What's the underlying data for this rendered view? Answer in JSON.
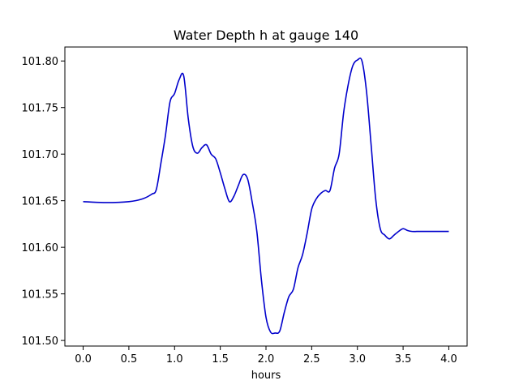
{
  "chart_data": {
    "type": "line",
    "title": "Water Depth h at gauge 140",
    "xlabel": "hours",
    "ylabel": "",
    "xlim": [
      -0.2,
      4.2
    ],
    "ylim": [
      101.494,
      101.815
    ],
    "grid": false,
    "x_ticks": [
      0.0,
      0.5,
      1.0,
      1.5,
      2.0,
      2.5,
      3.0,
      3.5,
      4.0
    ],
    "x_tick_labels": [
      "0.0",
      "0.5",
      "1.0",
      "1.5",
      "2.0",
      "2.5",
      "3.0",
      "3.5",
      "4.0"
    ],
    "y_ticks": [
      101.5,
      101.55,
      101.6,
      101.65,
      101.7,
      101.75,
      101.8
    ],
    "y_tick_labels": [
      "101.50",
      "101.55",
      "101.60",
      "101.65",
      "101.70",
      "101.75",
      "101.80"
    ],
    "series": [
      {
        "color": "#0000cc",
        "x": [
          0.0,
          0.25,
          0.5,
          0.65,
          0.75,
          0.8,
          0.85,
          0.9,
          0.95,
          1.0,
          1.05,
          1.1,
          1.15,
          1.2,
          1.25,
          1.3,
          1.35,
          1.4,
          1.45,
          1.5,
          1.55,
          1.6,
          1.65,
          1.7,
          1.75,
          1.8,
          1.85,
          1.9,
          1.95,
          2.0,
          2.05,
          2.1,
          2.15,
          2.2,
          2.25,
          2.3,
          2.35,
          2.4,
          2.45,
          2.5,
          2.55,
          2.6,
          2.65,
          2.7,
          2.75,
          2.8,
          2.85,
          2.9,
          2.95,
          3.0,
          3.05,
          3.1,
          3.15,
          3.2,
          3.25,
          3.3,
          3.35,
          3.4,
          3.45,
          3.5,
          3.55,
          3.6,
          3.65,
          3.7,
          3.75,
          3.8,
          3.85,
          3.9,
          3.95,
          4.0
        ],
        "values": [
          101.649,
          101.648,
          101.649,
          101.652,
          101.657,
          101.662,
          101.69,
          101.72,
          101.756,
          101.765,
          101.78,
          101.784,
          101.738,
          101.708,
          101.701,
          101.707,
          101.71,
          101.7,
          101.695,
          101.68,
          101.663,
          101.649,
          101.655,
          101.667,
          101.678,
          101.673,
          101.648,
          101.617,
          101.565,
          101.525,
          101.509,
          101.508,
          101.51,
          101.53,
          101.547,
          101.555,
          101.578,
          101.592,
          101.615,
          101.641,
          101.652,
          101.658,
          101.661,
          101.661,
          101.685,
          101.7,
          101.745,
          101.775,
          101.795,
          101.801,
          101.8,
          101.767,
          101.71,
          101.652,
          101.62,
          101.613,
          101.609,
          101.613,
          101.617,
          101.62,
          101.618,
          101.617,
          101.617,
          101.617,
          101.617,
          101.617,
          101.617,
          101.617,
          101.617,
          101.617
        ]
      }
    ]
  }
}
